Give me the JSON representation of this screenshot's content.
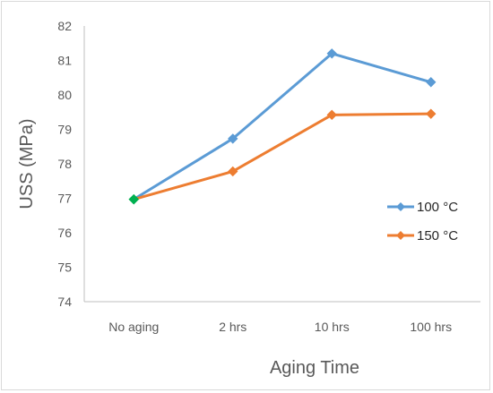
{
  "chart_data": {
    "type": "line",
    "title": "",
    "xlabel": "Aging Time",
    "ylabel": "USS (MPa)",
    "categories": [
      "No aging",
      "2 hrs",
      "10 hrs",
      "100 hrs"
    ],
    "ylim": [
      74,
      82
    ],
    "yticks": [
      "74",
      "75",
      "76",
      "77",
      "78",
      "79",
      "80",
      "81",
      "82"
    ],
    "grid": false,
    "legend_position": "right",
    "start_marker_color": "#00b050",
    "series": [
      {
        "name": "100 °C",
        "color": "#5b9bd5",
        "values": [
          76.97,
          78.73,
          81.2,
          80.37
        ]
      },
      {
        "name": "150 °C",
        "color": "#ed7d31",
        "values": [
          76.97,
          77.78,
          79.42,
          79.45
        ]
      }
    ]
  }
}
